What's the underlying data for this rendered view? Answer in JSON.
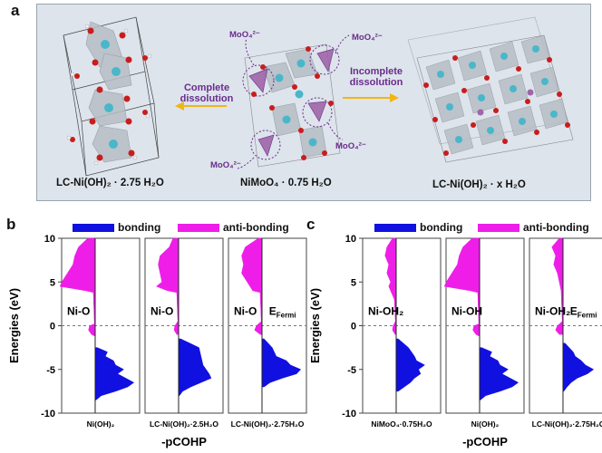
{
  "panel_a": {
    "letter": "a",
    "left_structure_label": "LC-Ni(OH)₂ · 2.75 H₂O",
    "center_structure_label": "NiMoO₄ · 0.75 H₂O",
    "right_structure_label": "LC-Ni(OH)₂ · x H₂O",
    "left_arrow_label_line1": "Complete",
    "left_arrow_label_line2": "dissolution",
    "right_arrow_label_line1": "Incomplete",
    "right_arrow_label_line2": "dissolution",
    "ion_labels": [
      "MoO₄²⁻",
      "MoO₄²⁻",
      "MoO₄²⁻",
      "MoO₄²⁻"
    ],
    "colors": {
      "arrow": "#f2b416",
      "label": "#6a2c8c",
      "ni": "#49b7c9",
      "o": "#c91d1d",
      "mo": "#a065a8"
    }
  },
  "legend": {
    "bonding": "bonding",
    "anti_bonding": "anti-bonding",
    "bonding_color": "#1010e0",
    "anti_bonding_color": "#ee1ee8"
  },
  "panel_b": {
    "letter": "b",
    "ylabel": "Energies (eV)",
    "xlabel": "-pCOHP",
    "fermi": "E",
    "fermi_sub": "Fermi",
    "subpanels": [
      {
        "bond": "Ni-O",
        "compound": "Ni(OH)₂"
      },
      {
        "bond": "Ni-O",
        "compound": "LC-Ni(OH)₂·2.5H₂O"
      },
      {
        "bond": "Ni-O",
        "compound": "LC-Ni(OH)₂·2.75H₂O"
      }
    ]
  },
  "panel_c": {
    "letter": "c",
    "ylabel": "Energies (eV)",
    "xlabel": "-pCOHP",
    "fermi": "E",
    "fermi_sub": "Fermi",
    "subpanels": [
      {
        "bond": "Ni-OH₂",
        "compound": "NiMoO₄·0.75H₂O"
      },
      {
        "bond": "Ni-OH",
        "compound": "Ni(OH)₂"
      },
      {
        "bond": "Ni-OH₂",
        "compound": "LC-Ni(OH)₂·2.75H₂O"
      }
    ]
  },
  "chart_data": [
    {
      "type": "area",
      "title": "",
      "xlabel": "-pCOHP",
      "ylabel": "Energies (eV)",
      "ylim": [
        -10,
        10
      ],
      "yticks": [
        10,
        5,
        0,
        -5,
        -10
      ],
      "fermi_level": 0,
      "series_names": [
        "bonding",
        "anti-bonding"
      ],
      "panels": [
        {
          "name": "Ni(OH)₂",
          "anti_bonding": [
            [
              10,
              0.2
            ],
            [
              9,
              0.45
            ],
            [
              8,
              0.55
            ],
            [
              7,
              0.6
            ],
            [
              6,
              0.75
            ],
            [
              5,
              0.9
            ],
            [
              4.5,
              0.95
            ],
            [
              4,
              0.25
            ],
            [
              3.8,
              0.05
            ],
            [
              0.2,
              0.02
            ],
            [
              0,
              0.15
            ],
            [
              -0.5,
              0.18
            ],
            [
              -1,
              0.1
            ],
            [
              -1.2,
              0
            ]
          ],
          "bonding": [
            [
              -2.5,
              0.05
            ],
            [
              -3,
              0.3
            ],
            [
              -3.5,
              0.25
            ],
            [
              -4,
              0.45
            ],
            [
              -4.5,
              0.5
            ],
            [
              -5,
              0.7
            ],
            [
              -5.5,
              0.55
            ],
            [
              -6,
              0.75
            ],
            [
              -6.5,
              0.95
            ],
            [
              -7,
              0.8
            ],
            [
              -7.5,
              0.5
            ],
            [
              -8,
              0.15
            ],
            [
              -8.5,
              0.02
            ]
          ]
        },
        {
          "name": "LC-Ni(OH)₂·2.5H₂O",
          "anti_bonding": [
            [
              10,
              0.15
            ],
            [
              9,
              0.25
            ],
            [
              8,
              0.5
            ],
            [
              7,
              0.55
            ],
            [
              6,
              0.5
            ],
            [
              5,
              0.45
            ],
            [
              4.5,
              0.6
            ],
            [
              4,
              0.3
            ],
            [
              3.8,
              0.05
            ],
            [
              0.5,
              0.02
            ],
            [
              0,
              0.1
            ],
            [
              -0.5,
              0.12
            ],
            [
              -1,
              0.05
            ]
          ],
          "bonding": [
            [
              -1.5,
              0.05
            ],
            [
              -2.5,
              0.5
            ],
            [
              -3.5,
              0.55
            ],
            [
              -4.5,
              0.6
            ],
            [
              -5.5,
              0.75
            ],
            [
              -6,
              0.8
            ],
            [
              -6.5,
              0.55
            ],
            [
              -7,
              0.3
            ],
            [
              -7.5,
              0.1
            ],
            [
              -8,
              0.02
            ]
          ]
        },
        {
          "name": "LC-Ni(OH)₂·2.75H₂O",
          "anti_bonding": [
            [
              10,
              0.1
            ],
            [
              9,
              0.45
            ],
            [
              8,
              0.55
            ],
            [
              7,
              0.5
            ],
            [
              6,
              0.55
            ],
            [
              5,
              0.4
            ],
            [
              4,
              0.25
            ],
            [
              3.8,
              0.05
            ],
            [
              0.5,
              0.02
            ],
            [
              0,
              0.15
            ],
            [
              -0.5,
              0.2
            ],
            [
              -1,
              0.05
            ]
          ],
          "bonding": [
            [
              -1.5,
              0.05
            ],
            [
              -2.5,
              0.25
            ],
            [
              -3.5,
              0.35
            ],
            [
              -4,
              0.6
            ],
            [
              -4.5,
              0.7
            ],
            [
              -5,
              0.95
            ],
            [
              -5.5,
              0.85
            ],
            [
              -6,
              0.5
            ],
            [
              -6.5,
              0.2
            ],
            [
              -7,
              0.05
            ]
          ]
        }
      ]
    },
    {
      "type": "area",
      "title": "",
      "xlabel": "-pCOHP",
      "ylabel": "Energies (eV)",
      "ylim": [
        -10,
        10
      ],
      "yticks": [
        10,
        5,
        0,
        -5,
        -10
      ],
      "fermi_level": 0,
      "series_names": [
        "bonding",
        "anti-bonding"
      ],
      "panels": [
        {
          "name": "NiMoO₄·0.75H₂O",
          "anti_bonding": [
            [
              10,
              0.1
            ],
            [
              9,
              0.25
            ],
            [
              8,
              0.3
            ],
            [
              7,
              0.2
            ],
            [
              6,
              0.25
            ],
            [
              5,
              0.15
            ],
            [
              4.5,
              0.2
            ],
            [
              3.5,
              0.1
            ],
            [
              3,
              0.05
            ],
            [
              0.5,
              0.02
            ],
            [
              0,
              0.08
            ],
            [
              -0.5,
              0.1
            ],
            [
              -1,
              0.03
            ]
          ],
          "bonding": [
            [
              -1.5,
              0.05
            ],
            [
              -2.5,
              0.3
            ],
            [
              -3.5,
              0.45
            ],
            [
              -4,
              0.5
            ],
            [
              -4.5,
              0.7
            ],
            [
              -5,
              0.55
            ],
            [
              -5.5,
              0.6
            ],
            [
              -6,
              0.45
            ],
            [
              -6.5,
              0.35
            ],
            [
              -7,
              0.2
            ],
            [
              -7.5,
              0.05
            ]
          ]
        },
        {
          "name": "Ni(OH)₂",
          "anti_bonding": [
            [
              10,
              0.2
            ],
            [
              9,
              0.45
            ],
            [
              8,
              0.55
            ],
            [
              7,
              0.6
            ],
            [
              6,
              0.75
            ],
            [
              5,
              0.9
            ],
            [
              4.5,
              0.95
            ],
            [
              4,
              0.25
            ],
            [
              3.8,
              0.05
            ],
            [
              0.2,
              0.02
            ],
            [
              0,
              0.15
            ],
            [
              -0.5,
              0.18
            ],
            [
              -1,
              0.1
            ],
            [
              -1.2,
              0
            ]
          ],
          "bonding": [
            [
              -2.5,
              0.05
            ],
            [
              -3,
              0.3
            ],
            [
              -3.5,
              0.25
            ],
            [
              -4,
              0.45
            ],
            [
              -4.5,
              0.5
            ],
            [
              -5,
              0.7
            ],
            [
              -5.5,
              0.55
            ],
            [
              -6,
              0.75
            ],
            [
              -6.5,
              0.95
            ],
            [
              -7,
              0.8
            ],
            [
              -7.5,
              0.5
            ],
            [
              -8,
              0.15
            ],
            [
              -8.5,
              0.02
            ]
          ]
        },
        {
          "name": "LC-Ni(OH)₂·2.75H₂O",
          "anti_bonding": [
            [
              10,
              0.1
            ],
            [
              9,
              0.3
            ],
            [
              8,
              0.2
            ],
            [
              7,
              0.25
            ],
            [
              6,
              0.15
            ],
            [
              5,
              0.1
            ],
            [
              4,
              0.05
            ],
            [
              0.5,
              0.02
            ],
            [
              0,
              0.15
            ],
            [
              -0.5,
              0.2
            ],
            [
              -1,
              0.1
            ]
          ],
          "bonding": [
            [
              -2,
              0.05
            ],
            [
              -3,
              0.25
            ],
            [
              -3.5,
              0.3
            ],
            [
              -4,
              0.45
            ],
            [
              -4.5,
              0.55
            ],
            [
              -5,
              0.75
            ],
            [
              -5.5,
              0.6
            ],
            [
              -6,
              0.35
            ],
            [
              -6.5,
              0.2
            ],
            [
              -7,
              0.1
            ],
            [
              -7.5,
              0.02
            ]
          ]
        }
      ]
    }
  ]
}
